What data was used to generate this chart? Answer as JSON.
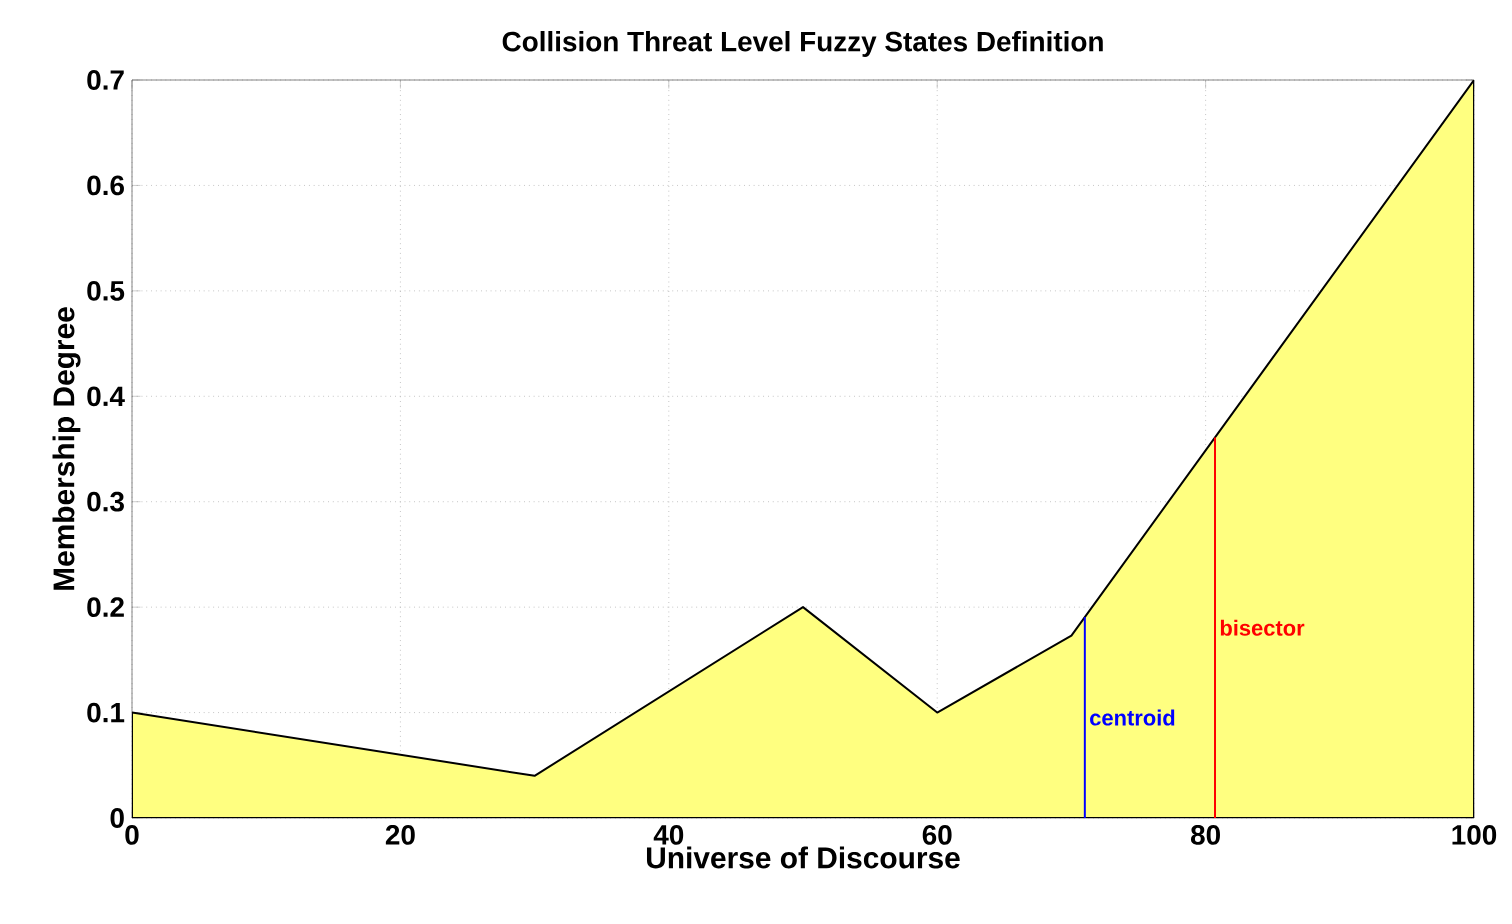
{
  "chart_data": {
    "type": "area",
    "title": "Collision Threat Level Fuzzy States Definition",
    "xlabel": "Universe of Discourse",
    "ylabel": "Membership Degree",
    "x": [
      0,
      30,
      50,
      60,
      70,
      100
    ],
    "series": [
      {
        "color": "#ffff80",
        "values": [
          0.1,
          0.04,
          0.2,
          0.1,
          0.173,
          0.7
        ]
      }
    ],
    "xlim": [
      0,
      100
    ],
    "ylim": [
      0,
      0.7
    ],
    "xticks": [
      0,
      20,
      40,
      60,
      80,
      100
    ],
    "yticks": [
      0,
      0.1,
      0.2,
      0.3,
      0.4,
      0.5,
      0.6,
      0.7
    ],
    "grid": true,
    "ref_lines": [
      {
        "axis": "x",
        "value": 71.0,
        "label": "centroid",
        "color": "#0000ff"
      },
      {
        "axis": "x",
        "value": 80.7,
        "label": "bisector",
        "color": "#ff0000"
      }
    ]
  }
}
